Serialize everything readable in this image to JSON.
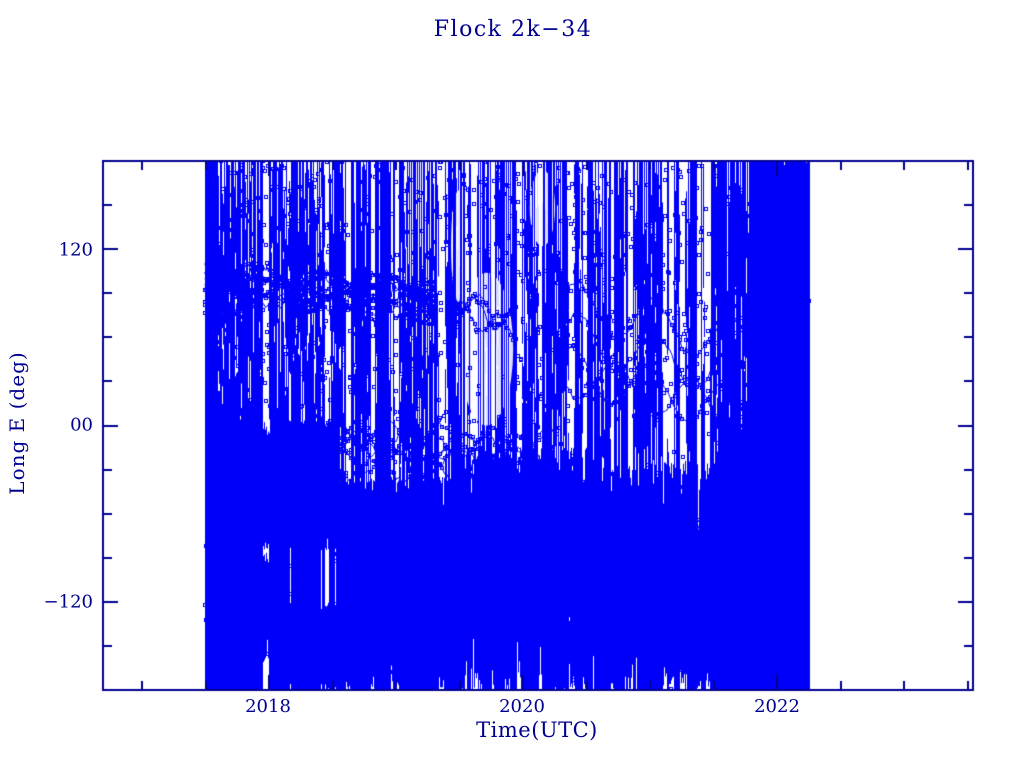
{
  "chart_data": {
    "type": "scatter",
    "title": "Flock 2k−34",
    "xlabel": "Time(UTC)",
    "ylabel": "Long E (deg)",
    "xlim": [
      2016.7,
      2023.55
    ],
    "ylim": [
      -180,
      180
    ],
    "grid": false,
    "legend": null,
    "marker": "open-square",
    "marker_px": 3,
    "data_color": "#0000fa",
    "axis_color": "#000090",
    "background_color": "#ffffff",
    "x_major_ticks": {
      "values": [
        2018,
        2020,
        2022
      ],
      "labels": [
        "2018",
        "2020",
        "2022"
      ]
    },
    "x_minor_ticks": [
      2017,
      2017.5,
      2018.5,
      2019,
      2019.5,
      2020.5,
      2021,
      2021.5,
      2022.5,
      2023,
      2023.5
    ],
    "y_major_ticks": {
      "values": [
        120,
        0,
        -120
      ],
      "labels": [
        "120",
        "00",
        "−120"
      ]
    },
    "y_minor_ticks": [
      150,
      90,
      60,
      30,
      -30,
      -60,
      -90,
      -150
    ],
    "data_time_span": [
      2017.5,
      2022.26
    ],
    "description": "Sub-satellite longitude (deg E) of Planet Flock 2k-34 vs time; rapidly wrapping longitude sampled each pass fills the panel with vertical lines, dense bands near +100 deg (2017.5-2019.3) and near 0/-60 deg, near-solid coverage below 0 deg, a sampling gap oval near (2019.7, +50), and near-solid coverage 2021.8-2022.26.",
    "texture": {
      "seed": 1234567,
      "span": [
        2017.5,
        2022.26
      ],
      "skip_p": [
        [
          2017.5,
          0.02
        ],
        [
          2018.6,
          0.05
        ],
        [
          2019.3,
          0.1
        ],
        [
          2020.0,
          0.09
        ],
        [
          2020.9,
          0.07
        ],
        [
          2021.6,
          0.04
        ],
        [
          2021.8,
          0.0
        ],
        [
          2022.26,
          0.0
        ]
      ],
      "full_p": [
        [
          2017.5,
          0.9
        ],
        [
          2017.58,
          0.5
        ],
        [
          2018.2,
          0.45
        ],
        [
          2018.7,
          0.5
        ],
        [
          2019.3,
          0.3
        ],
        [
          2019.9,
          0.28
        ],
        [
          2020.4,
          0.36
        ],
        [
          2021.1,
          0.42
        ],
        [
          2021.7,
          0.55
        ],
        [
          2021.85,
          0.8
        ],
        [
          2022.26,
          0.92
        ]
      ],
      "bottom_p": 0.93,
      "bottom_top": [
        [
          2017.5,
          5
        ],
        [
          2018.5,
          0
        ],
        [
          2018.65,
          -25
        ],
        [
          2019.1,
          -35
        ],
        [
          2019.5,
          -10
        ],
        [
          2020.1,
          -20
        ],
        [
          2020.7,
          -30
        ],
        [
          2021.3,
          -15
        ],
        [
          2021.8,
          10
        ],
        [
          2022.0,
          80
        ],
        [
          2022.26,
          120
        ]
      ],
      "bottom_noise": 70,
      "topseg_n": [
        [
          2017.5,
          7
        ],
        [
          2018.6,
          6
        ],
        [
          2019.3,
          4
        ],
        [
          2020.0,
          4
        ],
        [
          2020.6,
          5
        ],
        [
          2021.3,
          5
        ],
        [
          2021.9,
          7
        ],
        [
          2022.26,
          8
        ]
      ],
      "topline_p": 0.32,
      "blobs": [
        {
          "t": [
            2017.5,
            2017.57
          ],
          "lon": [
            -180,
            180
          ],
          "n": 800
        },
        {
          "t": [
            2017.52,
            2018.55
          ],
          "lon": [
            -85,
            3
          ],
          "n": 2600
        },
        {
          "t": [
            2017.52,
            2018.15
          ],
          "lon": [
            -162,
            -85
          ],
          "n": 700
        },
        {
          "t": [
            2018.1,
            2018.55
          ],
          "lon": [
            -180,
            -120
          ],
          "n": 500
        },
        {
          "t": [
            2018.55,
            2019.45
          ],
          "lon": [
            -180,
            -35
          ],
          "n": 2200
        },
        {
          "t": [
            2019.45,
            2020.6
          ],
          "lon": [
            -180,
            -15
          ],
          "n": 1800
        },
        {
          "t": [
            2020.6,
            2021.78
          ],
          "lon": [
            -180,
            -25
          ],
          "n": 1600
        },
        {
          "t": [
            2021.78,
            2022.26
          ],
          "lon": [
            -180,
            180
          ],
          "n": 2600
        }
      ],
      "gaps": [
        {
          "t": 2019.72,
          "lon": 52,
          "rt": 0.21,
          "rlon": 52
        },
        {
          "t": 2020.16,
          "lon": 148,
          "rt": 0.1,
          "rlon": 26
        },
        {
          "t": 2019.5,
          "lon": 122,
          "rt": 0.06,
          "rlon": 38
        }
      ],
      "gap_line_count": 12,
      "trail_groups": [
        {
          "n": 9,
          "t": [
            2017.5,
            2019.3
          ],
          "base": 97,
          "drift": -6,
          "amp": 7,
          "period": 0.5,
          "spread": 26,
          "dt": 0.016
        },
        {
          "n": 7,
          "t": [
            2018.35,
            2020.25
          ],
          "base": -12,
          "drift": -4,
          "amp": 9,
          "period": 0.42,
          "spread": 32,
          "dt": 0.02
        },
        {
          "n": 4,
          "t": [
            2020.3,
            2021.75
          ],
          "base": 60,
          "drift": -20,
          "amp": 16,
          "period": 0.6,
          "spread": 50,
          "dt": 0.02
        },
        {
          "n": 3,
          "t": [
            2020.9,
            2021.45
          ],
          "base": -65,
          "drift": -10,
          "amp": 10,
          "period": 0.3,
          "spread": 30,
          "dt": 0.02
        },
        {
          "n": 3,
          "t": [
            2019.5,
            2019.95
          ],
          "base": 85,
          "drift": -30,
          "amp": 8,
          "period": 0.3,
          "spread": 18,
          "dt": 0.016
        }
      ],
      "scatter_count": 1500
    }
  }
}
